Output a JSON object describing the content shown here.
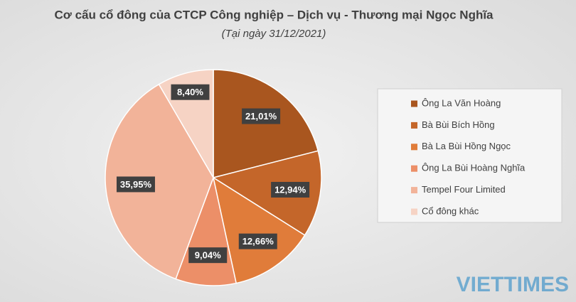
{
  "chart_data": {
    "type": "pie",
    "title": "Cơ cấu cổ đông của CTCP Công nghiệp – Dịch vụ - Thương mại Ngọc Nghĩa",
    "subtitle": "(Tại ngày 31/12/2021)",
    "categories": [
      "Ông La Văn Hoàng",
      "Bà Bùi Bích Hồng",
      "Bà La Bùi Hồng Ngọc",
      "Ông La Bùi Hoàng Nghĩa",
      "Tempel Four Limited",
      "Cổ đông khác"
    ],
    "values": [
      21.01,
      12.94,
      12.66,
      9.04,
      35.95,
      8.4
    ],
    "value_labels": [
      "21,01%",
      "12,94%",
      "12,66%",
      "9,04%",
      "35,95%",
      "8,40%"
    ],
    "colors": [
      "#a9561f",
      "#c4662a",
      "#e07c3a",
      "#ec8f68",
      "#f2b399",
      "#f6d3c4"
    ],
    "legend": "right",
    "watermark": "VIETTIMES"
  }
}
